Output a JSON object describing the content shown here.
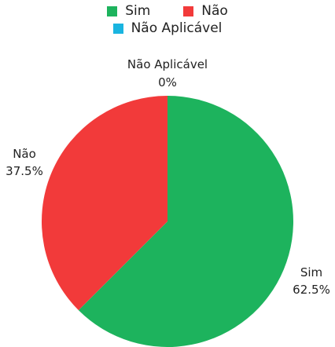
{
  "chart_data": {
    "type": "pie",
    "categories": [
      "Sim",
      "Não",
      "Não Aplicável"
    ],
    "values": [
      62.5,
      37.5,
      0
    ],
    "value_labels": [
      "62.5%",
      "37.5%",
      "0%"
    ],
    "colors": [
      "#1db35d",
      "#f23a3a",
      "#19b4e0"
    ],
    "legend_position": "top",
    "start": "top, clockwise"
  }
}
